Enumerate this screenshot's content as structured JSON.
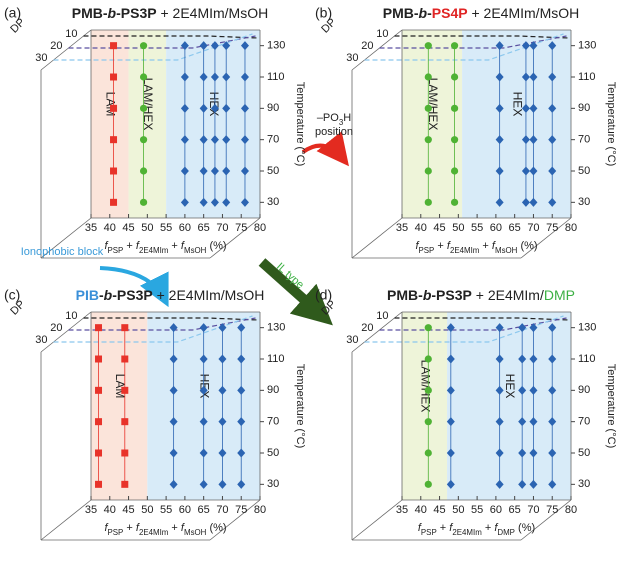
{
  "chart_data": [
    {
      "type": "scatter",
      "panel": "(a)",
      "title": [
        {
          "text": "PMB-",
          "bold": true
        },
        {
          "text": "b",
          "bold": true,
          "italic": true
        },
        {
          "text": "-PS3P",
          "bold": true
        },
        {
          "text": " + 2E4MIm/MsOH"
        }
      ],
      "xlabel": [
        {
          "text": "f",
          "italic": true
        },
        {
          "text": "PSP",
          "sub": true
        },
        {
          "text": " + "
        },
        {
          "text": "f",
          "italic": true
        },
        {
          "text": "2E4MIm",
          "sub": true
        },
        {
          "text": " + "
        },
        {
          "text": "f",
          "italic": true
        },
        {
          "text": "MsOH",
          "sub": true
        },
        {
          "text": " (%)"
        }
      ],
      "ylabel": "Temperature (°C)",
      "depth_label": "DP",
      "depth_ticks": [
        10,
        20,
        30
      ],
      "xlim": [
        35,
        80
      ],
      "xticks": [
        35,
        40,
        45,
        50,
        55,
        60,
        65,
        70,
        75,
        80
      ],
      "ylim": [
        20,
        140
      ],
      "yticks": [
        30,
        50,
        70,
        90,
        110,
        130
      ],
      "y": [
        30,
        50,
        70,
        90,
        110,
        130
      ],
      "regions": [
        {
          "label": "LAM",
          "from": 35,
          "to": 45,
          "color": "#fbe4da",
          "label_color": "#e8332a"
        },
        {
          "label": "LAM/HEX",
          "from": 45,
          "to": 55,
          "color": "#eef4d9",
          "label_color": "#4fb234"
        },
        {
          "label": "HEX",
          "from": 55,
          "to": 80,
          "color": "#d8ebf8",
          "label_color": "#2b64b2"
        }
      ],
      "columns": [
        {
          "x": 41,
          "marker": "square",
          "color": "#e8332a"
        },
        {
          "x": 49,
          "marker": "circle",
          "color": "#4fb234"
        },
        {
          "x": 60,
          "marker": "diamond",
          "color": "#2b64b2"
        },
        {
          "x": 65,
          "marker": "diamond",
          "color": "#2b64b2"
        },
        {
          "x": 68,
          "marker": "diamond",
          "color": "#2b64b2"
        },
        {
          "x": 71,
          "marker": "diamond",
          "color": "#2b64b2"
        },
        {
          "x": 76,
          "marker": "diamond",
          "color": "#2b64b2"
        }
      ]
    },
    {
      "type": "scatter",
      "panel": "(b)",
      "title": [
        {
          "text": "PMB-",
          "bold": true
        },
        {
          "text": "b",
          "bold": true,
          "italic": true
        },
        {
          "text": "-",
          "bold": true
        },
        {
          "text": "PS4P",
          "bold": true,
          "color": "#e02424"
        },
        {
          "text": " + 2E4MIm/MsOH"
        }
      ],
      "xlabel": [
        {
          "text": "f",
          "italic": true
        },
        {
          "text": "PSP",
          "sub": true
        },
        {
          "text": " + "
        },
        {
          "text": "f",
          "italic": true
        },
        {
          "text": "2E4MIm",
          "sub": true
        },
        {
          "text": " + "
        },
        {
          "text": "f",
          "italic": true
        },
        {
          "text": "MsOH",
          "sub": true
        },
        {
          "text": " (%)"
        }
      ],
      "ylabel": "Temperature (°C)",
      "depth_label": "DP",
      "depth_ticks": [
        10,
        20,
        30
      ],
      "xlim": [
        35,
        80
      ],
      "xticks": [
        35,
        40,
        45,
        50,
        55,
        60,
        65,
        70,
        75,
        80
      ],
      "ylim": [
        20,
        140
      ],
      "yticks": [
        30,
        50,
        70,
        90,
        110,
        130
      ],
      "y": [
        30,
        50,
        70,
        90,
        110,
        130
      ],
      "regions": [
        {
          "label": "LAM/HEX",
          "from": 35,
          "to": 51,
          "color": "#eef4d9",
          "label_color": "#4fb234"
        },
        {
          "label": "HEX",
          "from": 51,
          "to": 80,
          "color": "#d8ebf8",
          "label_color": "#2b64b2"
        }
      ],
      "columns": [
        {
          "x": 42,
          "marker": "circle",
          "color": "#4fb234"
        },
        {
          "x": 49,
          "marker": "circle",
          "color": "#4fb234"
        },
        {
          "x": 61,
          "marker": "diamond",
          "color": "#2b64b2"
        },
        {
          "x": 68,
          "marker": "diamond",
          "color": "#2b64b2"
        },
        {
          "x": 70,
          "marker": "diamond",
          "color": "#2b64b2"
        },
        {
          "x": 75,
          "marker": "diamond",
          "color": "#2b64b2"
        }
      ]
    },
    {
      "type": "scatter",
      "panel": "(c)",
      "title": [
        {
          "text": "PIB",
          "bold": true,
          "color": "#3a8fd8"
        },
        {
          "text": "-",
          "bold": true
        },
        {
          "text": "b",
          "bold": true,
          "italic": true
        },
        {
          "text": "-PS3P",
          "bold": true
        },
        {
          "text": " + 2E4MIm/MsOH"
        }
      ],
      "xlabel": [
        {
          "text": "f",
          "italic": true
        },
        {
          "text": "PSP",
          "sub": true
        },
        {
          "text": " + "
        },
        {
          "text": "f",
          "italic": true
        },
        {
          "text": "2E4MIm",
          "sub": true
        },
        {
          "text": " + "
        },
        {
          "text": "f",
          "italic": true
        },
        {
          "text": "MsOH",
          "sub": true
        },
        {
          "text": " (%)"
        }
      ],
      "ylabel": "Temperature (°C)",
      "depth_label": "DP",
      "depth_ticks": [
        10,
        20,
        30
      ],
      "xlim": [
        35,
        80
      ],
      "xticks": [
        35,
        40,
        45,
        50,
        55,
        60,
        65,
        70,
        75,
        80
      ],
      "ylim": [
        20,
        140
      ],
      "yticks": [
        30,
        50,
        70,
        90,
        110,
        130
      ],
      "y": [
        30,
        50,
        70,
        90,
        110,
        130
      ],
      "regions": [
        {
          "label": "LAM",
          "from": 35,
          "to": 50,
          "color": "#fbe4da",
          "label_color": "#e8332a"
        },
        {
          "label": "HEX",
          "from": 50,
          "to": 80,
          "color": "#d8ebf8",
          "label_color": "#2b64b2"
        }
      ],
      "columns": [
        {
          "x": 37,
          "marker": "square",
          "color": "#e8332a"
        },
        {
          "x": 44,
          "marker": "square",
          "color": "#e8332a"
        },
        {
          "x": 57,
          "marker": "diamond",
          "color": "#2b64b2"
        },
        {
          "x": 65,
          "marker": "diamond",
          "color": "#2b64b2"
        },
        {
          "x": 70,
          "marker": "diamond",
          "color": "#2b64b2"
        },
        {
          "x": 75,
          "marker": "diamond",
          "color": "#2b64b2"
        }
      ]
    },
    {
      "type": "scatter",
      "panel": "(d)",
      "title": [
        {
          "text": "PMB-",
          "bold": true
        },
        {
          "text": "b",
          "bold": true,
          "italic": true
        },
        {
          "text": "-PS3P",
          "bold": true
        },
        {
          "text": " + 2E4MIm/"
        },
        {
          "text": "DMP",
          "color": "#3cb043"
        }
      ],
      "xlabel": [
        {
          "text": "f",
          "italic": true
        },
        {
          "text": "PSP",
          "sub": true
        },
        {
          "text": " + "
        },
        {
          "text": "f",
          "italic": true
        },
        {
          "text": "2E4MIm",
          "sub": true
        },
        {
          "text": " + "
        },
        {
          "text": "f",
          "italic": true
        },
        {
          "text": "DMP",
          "sub": true
        },
        {
          "text": " (%)"
        }
      ],
      "ylabel": "Temperature (°C)",
      "depth_label": "DP",
      "depth_ticks": [
        10,
        20,
        30
      ],
      "xlim": [
        35,
        80
      ],
      "xticks": [
        35,
        40,
        45,
        50,
        55,
        60,
        65,
        70,
        75,
        80
      ],
      "ylim": [
        20,
        140
      ],
      "yticks": [
        30,
        50,
        70,
        90,
        110,
        130
      ],
      "y": [
        30,
        50,
        70,
        90,
        110,
        130
      ],
      "regions": [
        {
          "label": "LAM/HEX",
          "from": 35,
          "to": 47,
          "color": "#eef4d9",
          "label_color": "#4fb234"
        },
        {
          "label": "HEX",
          "from": 47,
          "to": 80,
          "color": "#d8ebf8",
          "label_color": "#2b64b2"
        }
      ],
      "columns": [
        {
          "x": 42,
          "marker": "circle",
          "color": "#4fb234"
        },
        {
          "x": 48,
          "marker": "diamond",
          "color": "#2b64b2"
        },
        {
          "x": 61,
          "marker": "diamond",
          "color": "#2b64b2"
        },
        {
          "x": 67,
          "marker": "diamond",
          "color": "#2b64b2"
        },
        {
          "x": 70,
          "marker": "diamond",
          "color": "#2b64b2"
        },
        {
          "x": 75,
          "marker": "diamond",
          "color": "#2b64b2"
        }
      ]
    }
  ],
  "annotations": [
    {
      "lines": [
        [
          {
            "text": "–PO"
          },
          {
            "text": "3",
            "sub": true
          },
          {
            "text": "H"
          }
        ],
        [
          {
            "text": "position"
          }
        ]
      ],
      "color": "#222"
    },
    {
      "lines": [
        [
          {
            "text": "Ionophobic block"
          }
        ]
      ],
      "color": "#3a9ad8"
    },
    {
      "lines": [
        [
          {
            "text": "IL type"
          }
        ]
      ],
      "color": "#3cb043"
    }
  ]
}
